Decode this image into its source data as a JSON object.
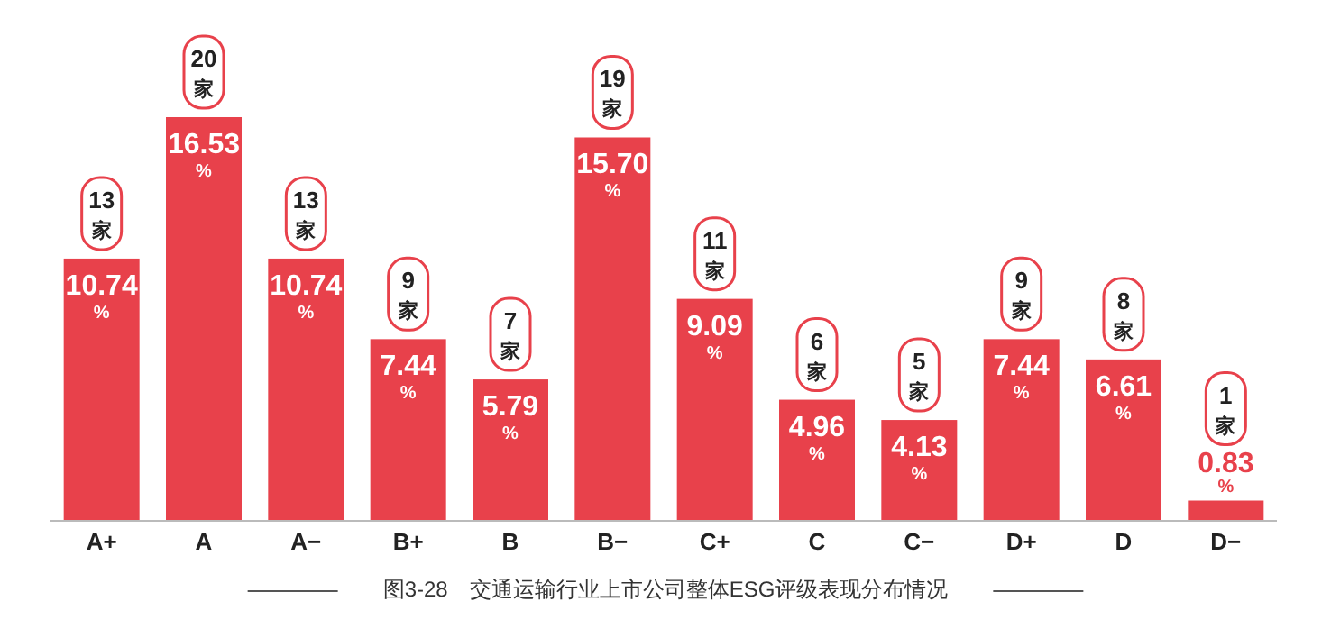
{
  "chart_data": {
    "type": "bar",
    "title": "图3-28　交通运输行业上市公司整体ESG评级表现分布情况",
    "categories": [
      "A+",
      "A",
      "A−",
      "B+",
      "B",
      "B−",
      "C+",
      "C",
      "C−",
      "D+",
      "D",
      "D−"
    ],
    "values": [
      10.74,
      16.53,
      10.74,
      7.44,
      5.79,
      15.7,
      9.09,
      4.96,
      4.13,
      7.44,
      6.61,
      0.83
    ],
    "value_labels": [
      "10.74 %",
      "16.53 %",
      "10.74 %",
      "7.44 %",
      "5.79 %",
      "15.70 %",
      "9.09 %",
      "4.96 %",
      "4.13 %",
      "7.44 %",
      "6.61 %",
      "0.83 %"
    ],
    "color": "#e8414b",
    "annotations": [
      {
        "text": "13家",
        "x": "A+",
        "y": 10.74
      },
      {
        "text": "20家",
        "x": "A",
        "y": 16.53
      },
      {
        "text": "13家",
        "x": "A−",
        "y": 10.74
      },
      {
        "text": "9家",
        "x": "B+",
        "y": 7.44
      },
      {
        "text": "7家",
        "x": "B",
        "y": 5.79
      },
      {
        "text": "19家",
        "x": "B−",
        "y": 15.7
      },
      {
        "text": "11家",
        "x": "C+",
        "y": 9.09
      },
      {
        "text": "6家",
        "x": "C",
        "y": 4.96
      },
      {
        "text": "5家",
        "x": "C−",
        "y": 4.13
      },
      {
        "text": "9家",
        "x": "D+",
        "y": 7.44
      },
      {
        "text": "8家",
        "x": "D",
        "y": 6.61
      },
      {
        "text": "1家",
        "x": "D−",
        "y": 0.83
      }
    ]
  }
}
